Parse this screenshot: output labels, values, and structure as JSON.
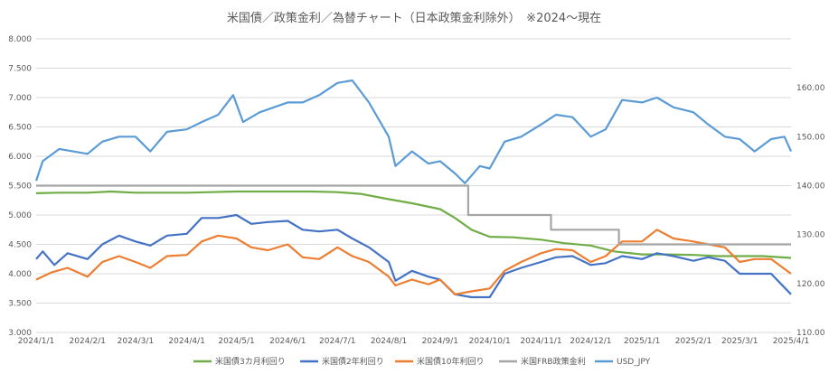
{
  "chart_data": {
    "type": "line",
    "title": "米国債／政策金利／為替チャート（日本政策金利除外）　※2024～現在",
    "x_tick_labels": [
      "2024/1/1",
      "2024/2/1",
      "2024/3/1",
      "2024/4/1",
      "2024/5/1",
      "2024/6/1",
      "2024/7/1",
      "2024/8/1",
      "2024/9/1",
      "2024/10/1",
      "2024/11/1",
      "2024/12/1",
      "2025/1/1",
      "2025/2/1",
      "2025/3/1",
      "2025/4/1"
    ],
    "y_left": {
      "ylim": [
        3.0,
        8.0
      ],
      "ticks": [
        "3.000",
        "3.500",
        "4.000",
        "4.500",
        "5.000",
        "5.500",
        "6.000",
        "6.500",
        "7.000",
        "7.500",
        "8.000"
      ]
    },
    "y_right": {
      "ylim": [
        110,
        170
      ],
      "ticks": [
        "110.00",
        "120.00",
        "130.00",
        "140.00",
        "150.00",
        "160.00"
      ]
    },
    "grid": true,
    "legend_position": "bottom",
    "series": [
      {
        "name": "米国債3カ月利回り",
        "color": "#70ad47",
        "axis": "left",
        "points": [
          [
            "2024-01-01",
            5.37
          ],
          [
            "2024-01-15",
            5.38
          ],
          [
            "2024-02-01",
            5.38
          ],
          [
            "2024-02-15",
            5.4
          ],
          [
            "2024-03-01",
            5.38
          ],
          [
            "2024-03-15",
            5.38
          ],
          [
            "2024-04-01",
            5.38
          ],
          [
            "2024-04-15",
            5.39
          ],
          [
            "2024-05-01",
            5.4
          ],
          [
            "2024-05-15",
            5.4
          ],
          [
            "2024-06-01",
            5.4
          ],
          [
            "2024-06-15",
            5.4
          ],
          [
            "2024-07-01",
            5.39
          ],
          [
            "2024-07-15",
            5.36
          ],
          [
            "2024-08-01",
            5.27
          ],
          [
            "2024-08-15",
            5.2
          ],
          [
            "2024-09-01",
            5.1
          ],
          [
            "2024-09-10",
            4.95
          ],
          [
            "2024-09-20",
            4.75
          ],
          [
            "2024-10-01",
            4.63
          ],
          [
            "2024-10-15",
            4.62
          ],
          [
            "2024-11-01",
            4.58
          ],
          [
            "2024-11-15",
            4.52
          ],
          [
            "2024-12-01",
            4.48
          ],
          [
            "2024-12-15",
            4.38
          ],
          [
            "2025-01-01",
            4.33
          ],
          [
            "2025-01-15",
            4.33
          ],
          [
            "2025-02-01",
            4.32
          ],
          [
            "2025-02-15",
            4.3
          ],
          [
            "2025-03-01",
            4.3
          ],
          [
            "2025-03-15",
            4.3
          ],
          [
            "2025-04-01",
            4.27
          ]
        ]
      },
      {
        "name": "米国債2年利回り",
        "color": "#4472c4",
        "axis": "left",
        "points": [
          [
            "2024-01-01",
            4.25
          ],
          [
            "2024-01-05",
            4.38
          ],
          [
            "2024-01-12",
            4.15
          ],
          [
            "2024-01-20",
            4.35
          ],
          [
            "2024-02-01",
            4.25
          ],
          [
            "2024-02-10",
            4.5
          ],
          [
            "2024-02-20",
            4.65
          ],
          [
            "2024-03-01",
            4.55
          ],
          [
            "2024-03-10",
            4.48
          ],
          [
            "2024-03-20",
            4.65
          ],
          [
            "2024-04-01",
            4.68
          ],
          [
            "2024-04-10",
            4.95
          ],
          [
            "2024-04-20",
            4.95
          ],
          [
            "2024-05-01",
            5.0
          ],
          [
            "2024-05-10",
            4.85
          ],
          [
            "2024-05-20",
            4.88
          ],
          [
            "2024-06-01",
            4.9
          ],
          [
            "2024-06-10",
            4.75
          ],
          [
            "2024-06-20",
            4.72
          ],
          [
            "2024-07-01",
            4.75
          ],
          [
            "2024-07-10",
            4.6
          ],
          [
            "2024-07-20",
            4.45
          ],
          [
            "2024-08-01",
            4.2
          ],
          [
            "2024-08-05",
            3.88
          ],
          [
            "2024-08-15",
            4.05
          ],
          [
            "2024-08-25",
            3.95
          ],
          [
            "2024-09-01",
            3.9
          ],
          [
            "2024-09-10",
            3.65
          ],
          [
            "2024-09-20",
            3.6
          ],
          [
            "2024-10-01",
            3.6
          ],
          [
            "2024-10-10",
            4.0
          ],
          [
            "2024-10-20",
            4.1
          ],
          [
            "2024-11-01",
            4.2
          ],
          [
            "2024-11-10",
            4.28
          ],
          [
            "2024-11-20",
            4.3
          ],
          [
            "2024-12-01",
            4.15
          ],
          [
            "2024-12-10",
            4.18
          ],
          [
            "2024-12-20",
            4.3
          ],
          [
            "2025-01-01",
            4.25
          ],
          [
            "2025-01-10",
            4.35
          ],
          [
            "2025-01-20",
            4.3
          ],
          [
            "2025-02-01",
            4.22
          ],
          [
            "2025-02-10",
            4.28
          ],
          [
            "2025-02-20",
            4.22
          ],
          [
            "2025-03-01",
            4.0
          ],
          [
            "2025-03-10",
            4.0
          ],
          [
            "2025-03-20",
            4.0
          ],
          [
            "2025-04-01",
            3.65
          ]
        ]
      },
      {
        "name": "米国債10年利回り",
        "color": "#ed7d31",
        "axis": "left",
        "points": [
          [
            "2024-01-01",
            3.9
          ],
          [
            "2024-01-10",
            4.02
          ],
          [
            "2024-01-20",
            4.1
          ],
          [
            "2024-02-01",
            3.95
          ],
          [
            "2024-02-10",
            4.2
          ],
          [
            "2024-02-20",
            4.3
          ],
          [
            "2024-03-01",
            4.2
          ],
          [
            "2024-03-10",
            4.1
          ],
          [
            "2024-03-20",
            4.3
          ],
          [
            "2024-04-01",
            4.32
          ],
          [
            "2024-04-10",
            4.55
          ],
          [
            "2024-04-20",
            4.65
          ],
          [
            "2024-05-01",
            4.6
          ],
          [
            "2024-05-10",
            4.45
          ],
          [
            "2024-05-20",
            4.4
          ],
          [
            "2024-06-01",
            4.5
          ],
          [
            "2024-06-10",
            4.28
          ],
          [
            "2024-06-20",
            4.25
          ],
          [
            "2024-07-01",
            4.45
          ],
          [
            "2024-07-10",
            4.3
          ],
          [
            "2024-07-20",
            4.2
          ],
          [
            "2024-08-01",
            3.95
          ],
          [
            "2024-08-05",
            3.8
          ],
          [
            "2024-08-15",
            3.9
          ],
          [
            "2024-08-25",
            3.82
          ],
          [
            "2024-09-01",
            3.9
          ],
          [
            "2024-09-10",
            3.65
          ],
          [
            "2024-09-20",
            3.7
          ],
          [
            "2024-10-01",
            3.75
          ],
          [
            "2024-10-10",
            4.05
          ],
          [
            "2024-10-20",
            4.2
          ],
          [
            "2024-11-01",
            4.35
          ],
          [
            "2024-11-10",
            4.42
          ],
          [
            "2024-11-20",
            4.4
          ],
          [
            "2024-12-01",
            4.2
          ],
          [
            "2024-12-10",
            4.3
          ],
          [
            "2024-12-20",
            4.55
          ],
          [
            "2025-01-01",
            4.55
          ],
          [
            "2025-01-10",
            4.75
          ],
          [
            "2025-01-20",
            4.6
          ],
          [
            "2025-02-01",
            4.55
          ],
          [
            "2025-02-10",
            4.5
          ],
          [
            "2025-02-20",
            4.45
          ],
          [
            "2025-03-01",
            4.2
          ],
          [
            "2025-03-10",
            4.25
          ],
          [
            "2025-03-20",
            4.25
          ],
          [
            "2025-04-01",
            4.0
          ]
        ]
      },
      {
        "name": "米国FRB政策金利",
        "color": "#a5a5a5",
        "axis": "left",
        "points": [
          [
            "2024-01-01",
            5.5
          ],
          [
            "2024-09-18",
            5.5
          ],
          [
            "2024-09-18",
            5.0
          ],
          [
            "2024-11-07",
            5.0
          ],
          [
            "2024-11-07",
            4.75
          ],
          [
            "2024-12-18",
            4.75
          ],
          [
            "2024-12-18",
            4.5
          ],
          [
            "2025-04-01",
            4.5
          ]
        ]
      },
      {
        "name": "USD_JPY",
        "color": "#5b9bd5",
        "axis": "right",
        "points": [
          [
            "2024-01-01",
            141.0
          ],
          [
            "2024-01-05",
            145.0
          ],
          [
            "2024-01-15",
            147.5
          ],
          [
            "2024-02-01",
            146.5
          ],
          [
            "2024-02-10",
            149.0
          ],
          [
            "2024-02-20",
            150.0
          ],
          [
            "2024-03-01",
            150.0
          ],
          [
            "2024-03-10",
            147.0
          ],
          [
            "2024-03-20",
            151.0
          ],
          [
            "2024-04-01",
            151.5
          ],
          [
            "2024-04-10",
            153.0
          ],
          [
            "2024-04-20",
            154.5
          ],
          [
            "2024-04-29",
            158.5
          ],
          [
            "2024-05-05",
            153.0
          ],
          [
            "2024-05-15",
            155.0
          ],
          [
            "2024-06-01",
            157.0
          ],
          [
            "2024-06-10",
            157.0
          ],
          [
            "2024-06-20",
            158.5
          ],
          [
            "2024-07-01",
            161.0
          ],
          [
            "2024-07-10",
            161.5
          ],
          [
            "2024-07-20",
            157.0
          ],
          [
            "2024-08-01",
            150.0
          ],
          [
            "2024-08-05",
            144.0
          ],
          [
            "2024-08-15",
            147.0
          ],
          [
            "2024-08-25",
            144.5
          ],
          [
            "2024-09-01",
            145.0
          ],
          [
            "2024-09-10",
            142.5
          ],
          [
            "2024-09-16",
            140.5
          ],
          [
            "2024-09-25",
            144.0
          ],
          [
            "2024-10-01",
            143.5
          ],
          [
            "2024-10-10",
            149.0
          ],
          [
            "2024-10-20",
            150.0
          ],
          [
            "2024-11-01",
            152.5
          ],
          [
            "2024-11-10",
            154.5
          ],
          [
            "2024-11-20",
            154.0
          ],
          [
            "2024-12-01",
            150.0
          ],
          [
            "2024-12-10",
            151.5
          ],
          [
            "2024-12-20",
            157.5
          ],
          [
            "2025-01-01",
            157.0
          ],
          [
            "2025-01-10",
            158.0
          ],
          [
            "2025-01-20",
            156.0
          ],
          [
            "2025-02-01",
            155.0
          ],
          [
            "2025-02-10",
            152.5
          ],
          [
            "2025-02-20",
            150.0
          ],
          [
            "2025-03-01",
            149.5
          ],
          [
            "2025-03-10",
            147.0
          ],
          [
            "2025-03-20",
            149.5
          ],
          [
            "2025-03-28",
            150.0
          ],
          [
            "2025-04-01",
            147.0
          ]
        ]
      }
    ]
  }
}
